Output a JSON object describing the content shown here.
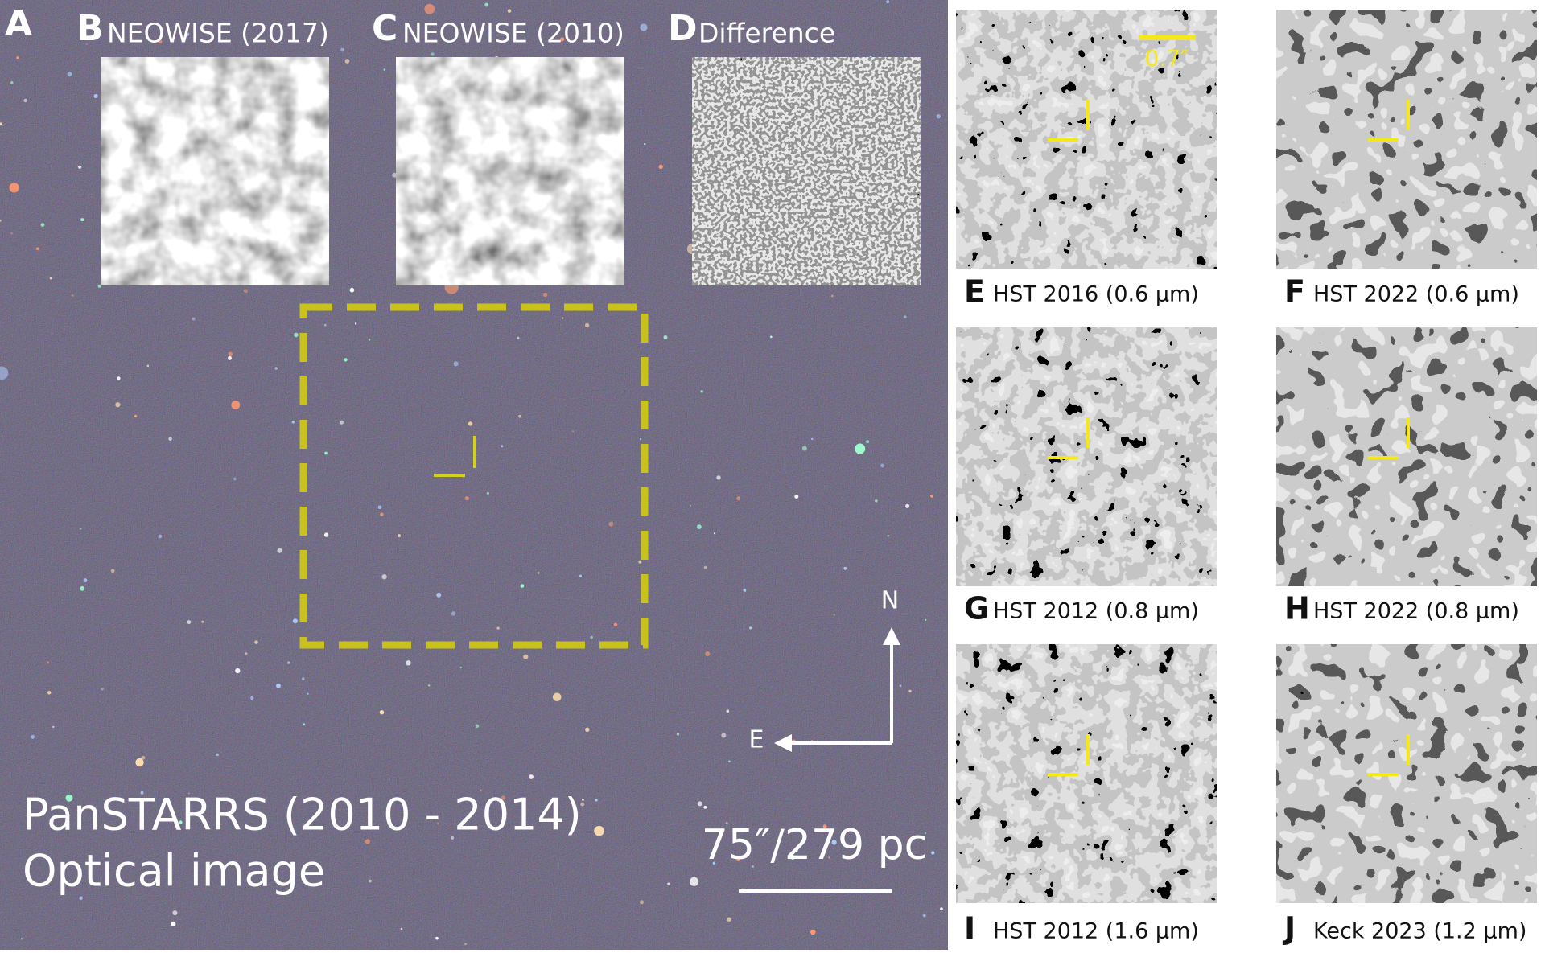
{
  "panel_a": {
    "letter": "A",
    "caption_line1": "PanSTARRS (2010 - 2014)",
    "caption_line2": "Optical image",
    "scale_label": "75″/279 pc",
    "north": "N",
    "east": "E"
  },
  "insets": [
    {
      "letter": "B",
      "label": "NEOWISE (2017)"
    },
    {
      "letter": "C",
      "label": "NEOWISE (2010)"
    },
    {
      "letter": "D",
      "label": "Difference"
    }
  ],
  "hst_panels": [
    {
      "letter": "E",
      "label": "HST 2016 (0.6 µm)",
      "scale_label": "0.7″"
    },
    {
      "letter": "F",
      "label": "HST 2022 (0.6 µm)"
    },
    {
      "letter": "G",
      "label": "HST 2012 (0.8 µm)"
    },
    {
      "letter": "H",
      "label": "HST 2022 (0.8 µm)"
    },
    {
      "letter": "I",
      "label": "HST 2012 (1.6 µm)"
    },
    {
      "letter": "J",
      "label": "Keck 2023 (1.2 µm)"
    }
  ]
}
